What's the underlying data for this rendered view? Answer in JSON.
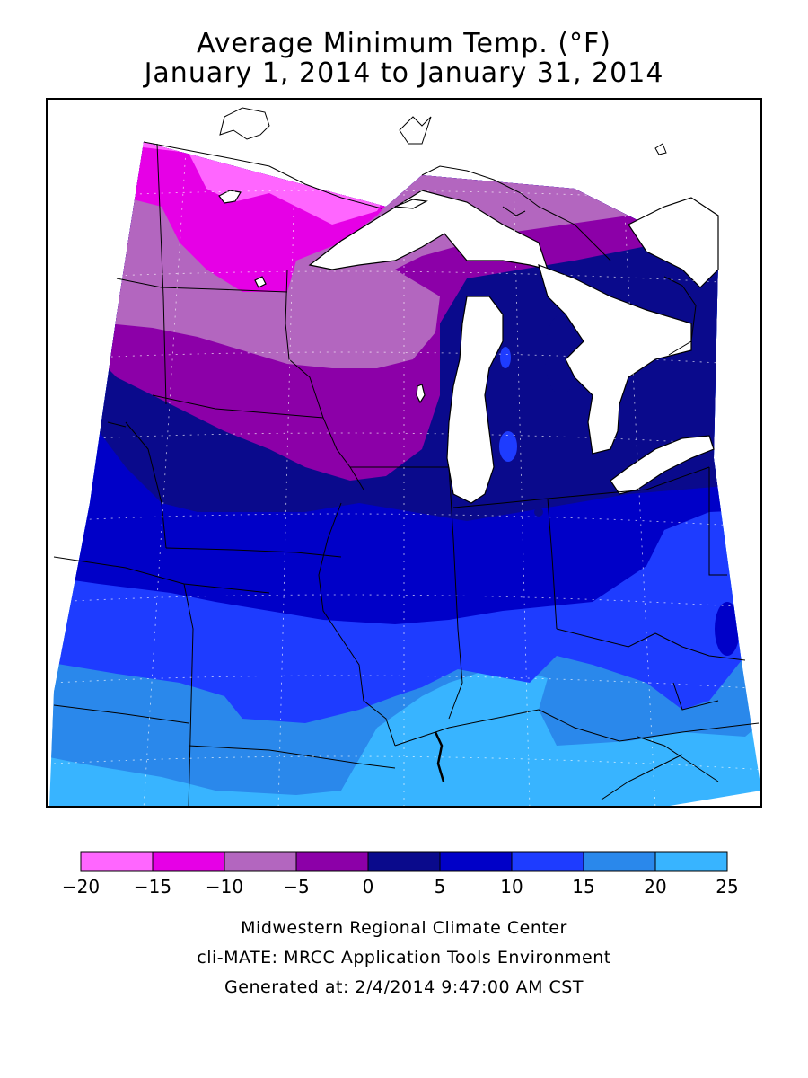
{
  "title": {
    "line1": "Average Minimum Temp. (°F)",
    "line2": "January 1, 2014 to January 31, 2014"
  },
  "legend": {
    "bins": [
      {
        "min": -20,
        "max": -15,
        "color": "#ff66ff"
      },
      {
        "min": -15,
        "max": -10,
        "color": "#e600e6"
      },
      {
        "min": -10,
        "max": -5,
        "color": "#b366bf"
      },
      {
        "min": -5,
        "max": 0,
        "color": "#8c00a8"
      },
      {
        "min": 0,
        "max": 5,
        "color": "#0a0a8c"
      },
      {
        "min": 5,
        "max": 10,
        "color": "#0000c8"
      },
      {
        "min": 10,
        "max": 15,
        "color": "#1e3cff"
      },
      {
        "min": 15,
        "max": 20,
        "color": "#2a88eb"
      },
      {
        "min": 20,
        "max": 25,
        "color": "#38b4ff"
      }
    ],
    "tick_labels": [
      "−20",
      "−15",
      "−10",
      "−5",
      "0",
      "5",
      "10",
      "15",
      "20",
      "25"
    ]
  },
  "map": {
    "zones": [
      {
        "name": "minus-20-to-minus-15",
        "color": "#ff66ff"
      },
      {
        "name": "minus-15-to-minus-10",
        "color": "#e600e6"
      },
      {
        "name": "minus-10-to-minus-5",
        "color": "#b366bf"
      },
      {
        "name": "minus-5-to-0",
        "color": "#8c00a8"
      },
      {
        "name": "0-to-5",
        "color": "#0a0a8c"
      },
      {
        "name": "5-to-10",
        "color": "#0000c8"
      },
      {
        "name": "10-to-15",
        "color": "#1e3cff"
      },
      {
        "name": "15-to-20",
        "color": "#2a88eb"
      },
      {
        "name": "20-to-25",
        "color": "#38b4ff"
      }
    ]
  },
  "footer": {
    "line1": "Midwestern Regional Climate Center",
    "line2": "cli-MATE: MRCC Application Tools Environment",
    "line3": "Generated at: 2/4/2014 9:47:00 AM CST"
  }
}
